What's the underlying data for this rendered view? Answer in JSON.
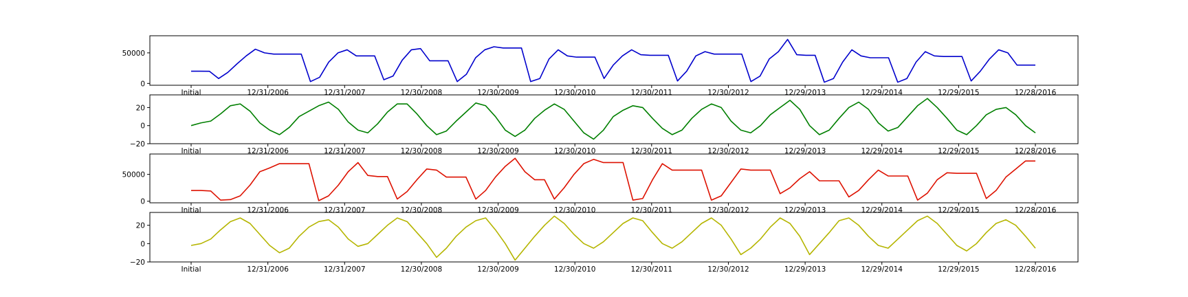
{
  "chart_data": [
    {
      "type": "line",
      "color": "#0000cc",
      "x_tick_labels": [
        "Initial",
        "12/31/2006",
        "12/31/2007",
        "12/30/2008",
        "12/30/2009",
        "12/30/2010",
        "12/30/2011",
        "12/30/2012",
        "12/29/2013",
        "12/29/2014",
        "12/29/2015",
        "12/28/2016"
      ],
      "y_ticks": [
        0,
        50000
      ],
      "ylim": [
        -3000,
        78000
      ],
      "series": [
        {
          "values": [
            20000,
            20000,
            19800,
            8000,
            18000,
            32000,
            45000,
            56000,
            50000,
            48000,
            48000,
            48000,
            48000,
            3000,
            10000,
            35000,
            50000,
            55000,
            45000,
            45000,
            45000,
            6000,
            12000,
            38000,
            55000,
            57000,
            37000,
            37000,
            37000,
            3000,
            15000,
            42000,
            55000,
            60000,
            58000,
            58000,
            58000,
            3000,
            8000,
            40000,
            55000,
            45000,
            43000,
            43000,
            43000,
            8000,
            30000,
            45000,
            55000,
            47000,
            46000,
            46000,
            46000,
            4000,
            20000,
            45000,
            52000,
            48000,
            48000,
            48000,
            48000,
            3000,
            12000,
            40000,
            52000,
            72000,
            47000,
            46000,
            46000,
            2000,
            8000,
            35000,
            55000,
            45000,
            42000,
            42000,
            42000,
            2000,
            8000,
            35000,
            52000,
            45000,
            44000,
            44000,
            44000,
            4000,
            20000,
            40000,
            55000,
            50000,
            30000,
            30000,
            30000
          ]
        }
      ]
    },
    {
      "type": "line",
      "color": "#007f00",
      "x_tick_labels": [
        "Initial",
        "12/31/2006",
        "12/31/2007",
        "12/30/2008",
        "12/30/2009",
        "12/30/2010",
        "12/30/2011",
        "12/30/2012",
        "12/29/2013",
        "12/29/2014",
        "12/29/2015",
        "12/28/2016"
      ],
      "y_ticks": [
        -20,
        0,
        20
      ],
      "ylim": [
        -20,
        34
      ],
      "series": [
        {
          "values": [
            0,
            3,
            5,
            13,
            22,
            24,
            16,
            3,
            -5,
            -10,
            -2,
            10,
            16,
            22,
            26,
            18,
            4,
            -5,
            -8,
            2,
            15,
            24,
            24,
            13,
            0,
            -10,
            -6,
            5,
            15,
            25,
            22,
            10,
            -5,
            -12,
            -5,
            8,
            17,
            24,
            18,
            5,
            -8,
            -15,
            -5,
            10,
            17,
            22,
            20,
            8,
            -3,
            -10,
            -5,
            8,
            18,
            24,
            20,
            5,
            -5,
            -8,
            0,
            12,
            20,
            28,
            18,
            0,
            -10,
            -5,
            8,
            20,
            26,
            18,
            3,
            -6,
            -2,
            10,
            22,
            30,
            20,
            8,
            -5,
            -10,
            0,
            12,
            18,
            20,
            12,
            0,
            -8
          ]
        }
      ]
    },
    {
      "type": "line",
      "color": "#dd1100",
      "x_tick_labels": [
        "Initial",
        "12/31/2006",
        "12/31/2007",
        "12/30/2008",
        "12/30/2009",
        "12/30/2010",
        "12/30/2011",
        "12/30/2012",
        "12/29/2013",
        "12/29/2014",
        "12/29/2015",
        "12/28/2016"
      ],
      "y_ticks": [
        0,
        50000
      ],
      "ylim": [
        -3000,
        88000
      ],
      "series": [
        {
          "values": [
            20000,
            20000,
            19000,
            2000,
            3000,
            10000,
            30000,
            55000,
            62000,
            70000,
            70000,
            70000,
            70000,
            1000,
            10000,
            30000,
            55000,
            72000,
            48000,
            46000,
            46000,
            4000,
            18000,
            40000,
            60000,
            58000,
            45000,
            45000,
            45000,
            4000,
            20000,
            45000,
            65000,
            80000,
            55000,
            40000,
            40000,
            4000,
            25000,
            50000,
            70000,
            78000,
            72000,
            72000,
            72000,
            2000,
            5000,
            40000,
            70000,
            58000,
            58000,
            58000,
            58000,
            2000,
            10000,
            35000,
            60000,
            58000,
            58000,
            58000,
            14000,
            25000,
            42000,
            55000,
            38000,
            38000,
            38000,
            8000,
            20000,
            40000,
            58000,
            47000,
            47000,
            47000,
            2000,
            15000,
            40000,
            53000,
            52000,
            52000,
            52000,
            5000,
            20000,
            45000,
            60000,
            75000,
            75000
          ]
        }
      ]
    },
    {
      "type": "line",
      "color": "#b5b500",
      "x_tick_labels": [
        "Initial",
        "12/31/2006",
        "12/31/2007",
        "12/30/2008",
        "12/30/2009",
        "12/30/2010",
        "12/30/2011",
        "12/30/2012",
        "12/29/2013",
        "12/29/2014",
        "12/29/2015",
        "12/28/2016"
      ],
      "y_ticks": [
        -20,
        0,
        20
      ],
      "ylim": [
        -20,
        34
      ],
      "series": [
        {
          "values": [
            -2,
            0,
            5,
            15,
            24,
            28,
            22,
            10,
            -2,
            -10,
            -5,
            8,
            18,
            24,
            26,
            18,
            5,
            -3,
            0,
            10,
            20,
            28,
            24,
            12,
            0,
            -15,
            -5,
            8,
            18,
            25,
            28,
            15,
            0,
            -18,
            -5,
            8,
            20,
            30,
            22,
            10,
            0,
            -5,
            2,
            12,
            22,
            28,
            25,
            12,
            0,
            -5,
            2,
            12,
            22,
            28,
            20,
            5,
            -12,
            -5,
            5,
            18,
            28,
            22,
            8,
            -12,
            0,
            12,
            25,
            28,
            20,
            8,
            -2,
            -5,
            5,
            15,
            25,
            30,
            22,
            10,
            -2,
            -8,
            0,
            12,
            22,
            26,
            20,
            8,
            -5
          ]
        }
      ]
    }
  ]
}
